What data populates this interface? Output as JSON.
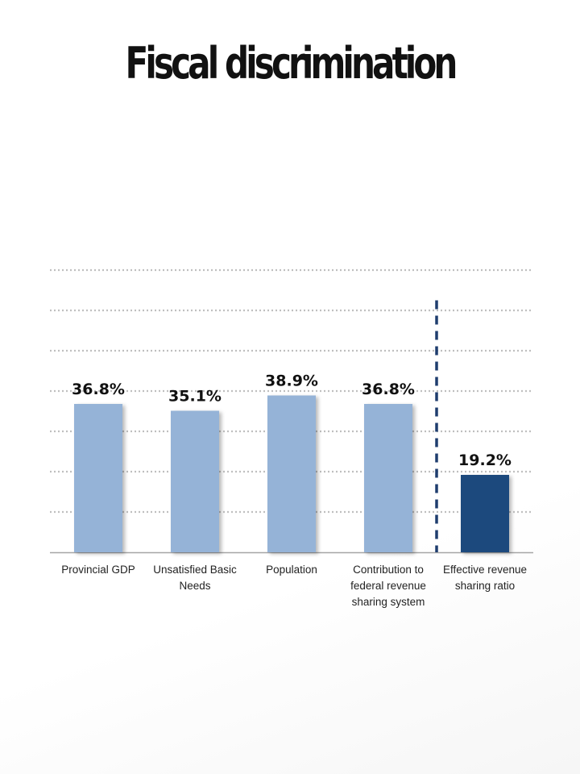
{
  "title": "Fiscal discrimination",
  "colors": {
    "bar_light": "#95b3d7",
    "bar_dark": "#1f497d",
    "grid": "#bfbfbf",
    "axis": "#a6a6a6",
    "divider": "#1f3d6e"
  },
  "chart_data": {
    "type": "bar",
    "title": "Fiscal discrimination",
    "xlabel": "",
    "ylabel": "",
    "ylim": [
      0,
      70
    ],
    "grid": true,
    "categories": [
      [
        "Provincial GDP"
      ],
      [
        "Unsatisfied Basic",
        "Needs"
      ],
      [
        "Population"
      ],
      [
        "Contribution to",
        "federal revenue",
        "sharing system"
      ],
      [
        "Effective revenue",
        "sharing ratio"
      ]
    ],
    "values": [
      36.8,
      35.1,
      38.9,
      36.8,
      19.2
    ],
    "data_labels": [
      "36.8%",
      "35.1%",
      "38.9%",
      "36.8%",
      "19.2%"
    ],
    "highlight_index": 4,
    "divider_before_index": 4
  }
}
